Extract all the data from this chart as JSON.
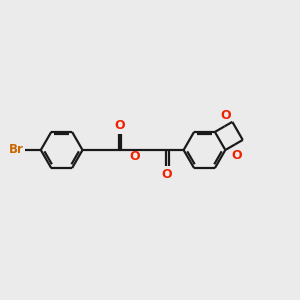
{
  "background_color": "#ebebeb",
  "bond_color": "#1a1a1a",
  "oxygen_color": "#ee2200",
  "bromine_color": "#cc6600",
  "line_width": 1.6,
  "fig_size": [
    3.0,
    3.0
  ],
  "dpi": 100,
  "xlim": [
    0,
    12
  ],
  "ylim": [
    0,
    12
  ]
}
